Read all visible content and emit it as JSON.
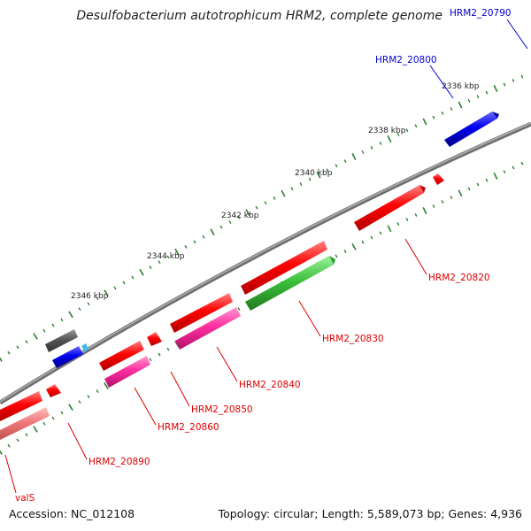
{
  "title": "Desulfobacterium autotrophicum HRM2, complete genome",
  "footer": {
    "accession": "Accession: NC_012108",
    "summary": "Topology: circular; Length: 5,589,073 bp; Genes: 4,936"
  },
  "colors": {
    "backbone": "#808080",
    "tick": "#2e7d2e",
    "red": "#ff0000",
    "pink": "#ff3aa6",
    "green": "#3fc43f",
    "blue": "#0000ee",
    "gray": "#555555",
    "lightred": "#f07a7a",
    "cyan": "#44bbee",
    "label_blue": "#0000cc",
    "label_red": "#dd0000"
  },
  "scale_labels": [
    "2336 kbp",
    "2338 kbp",
    "2340 kbp",
    "2342 kbp",
    "2344 kbp",
    "2346 kbp"
  ],
  "gene_labels": {
    "HRM2_20790": "HRM2_20790",
    "HRM2_20800": "HRM2_20800",
    "HRM2_20820": "HRM2_20820",
    "HRM2_20830": "HRM2_20830",
    "HRM2_20840": "HRM2_20840",
    "HRM2_20850": "HRM2_20850",
    "HRM2_20860": "HRM2_20860",
    "HRM2_20890": "HRM2_20890",
    "valS": "valS"
  }
}
